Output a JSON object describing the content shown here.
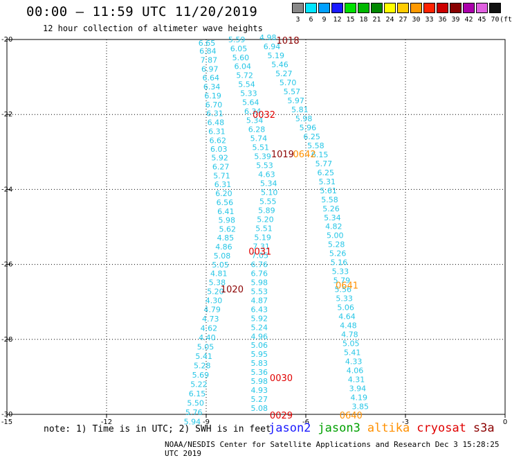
{
  "header": {
    "title": "00:00 – 11:59 UTC 11/20/2019",
    "subtitle": "12 hour collection of altimeter wave heights"
  },
  "color_scale": {
    "unit": "(ft)",
    "bins": [
      {
        "label": "3",
        "color": "#888888"
      },
      {
        "label": "6",
        "color": "#00e5ff"
      },
      {
        "label": "9",
        "color": "#00a0ff"
      },
      {
        "label": "12",
        "color": "#1a1aff"
      },
      {
        "label": "15",
        "color": "#00e000"
      },
      {
        "label": "18",
        "color": "#00b800"
      },
      {
        "label": "21",
        "color": "#008800"
      },
      {
        "label": "24",
        "color": "#ffff00"
      },
      {
        "label": "27",
        "color": "#ffcc00"
      },
      {
        "label": "30",
        "color": "#ff9900"
      },
      {
        "label": "33",
        "color": "#ff2200"
      },
      {
        "label": "36",
        "color": "#cc0000"
      },
      {
        "label": "39",
        "color": "#880000"
      },
      {
        "label": "42",
        "color": "#aa00aa"
      },
      {
        "label": "45",
        "color": "#e060e0"
      },
      {
        "label": "70",
        "color": "#111111"
      }
    ]
  },
  "chart_data": {
    "type": "scatter",
    "x_ticks": [
      "-15",
      "-12",
      "-9",
      "-6",
      "-3",
      "0"
    ],
    "y_ticks": [
      "-20",
      "-22",
      "-24",
      "-26",
      "-28",
      "-30"
    ],
    "xlim": [
      -15,
      0
    ],
    "ylim": [
      -30,
      -20
    ],
    "grid": true,
    "tracks": [
      {
        "color": "#26c6e6",
        "points": [
          [
            -8.98,
            -20.17,
            "6.65"
          ],
          [
            -8.95,
            -20.38,
            "6.84"
          ],
          [
            -8.92,
            -20.62,
            "7.87"
          ],
          [
            -8.89,
            -20.86,
            "6.97"
          ],
          [
            -8.86,
            -21.09,
            "6.64"
          ],
          [
            -8.83,
            -21.33,
            "6.34"
          ],
          [
            -8.8,
            -21.57,
            "6.19"
          ],
          [
            -8.77,
            -21.81,
            "6.70"
          ],
          [
            -8.74,
            -22.04,
            "6.31"
          ],
          [
            -8.71,
            -22.28,
            "6.48"
          ],
          [
            -8.68,
            -22.52,
            "6.31"
          ],
          [
            -8.65,
            -22.76,
            "6.62"
          ],
          [
            -8.62,
            -22.99,
            "6.03"
          ],
          [
            -8.59,
            -23.23,
            "5.92"
          ],
          [
            -8.56,
            -23.47,
            "6.27"
          ],
          [
            -8.53,
            -23.71,
            "5.71"
          ],
          [
            -8.5,
            -23.94,
            "6.31"
          ],
          [
            -8.47,
            -24.18,
            "6.20"
          ],
          [
            -8.44,
            -24.42,
            "6.56"
          ],
          [
            -8.41,
            -24.66,
            "6.41"
          ],
          [
            -8.38,
            -24.89,
            "5.98"
          ],
          [
            -8.36,
            -25.13,
            "5.62"
          ],
          [
            -8.42,
            -25.36,
            "4.85"
          ],
          [
            -8.47,
            -25.6,
            "4.86"
          ],
          [
            -8.52,
            -25.84,
            "5.08"
          ],
          [
            -8.57,
            -26.08,
            "5.05"
          ],
          [
            -8.62,
            -26.31,
            "4.81"
          ],
          [
            -8.67,
            -26.55,
            "5.38"
          ],
          [
            -8.72,
            -26.79,
            "5.20"
          ],
          [
            -8.77,
            -27.03,
            "4.30"
          ],
          [
            -8.82,
            -27.27,
            "4.79"
          ],
          [
            -8.87,
            -27.52,
            "4.73"
          ],
          [
            -8.92,
            -27.77,
            "4.62"
          ],
          [
            -8.97,
            -28.02,
            "4.40"
          ],
          [
            -9.02,
            -28.27,
            "5.05"
          ],
          [
            -9.07,
            -28.52,
            "5.41"
          ],
          [
            -9.12,
            -28.77,
            "5.28"
          ],
          [
            -9.17,
            -29.02,
            "5.69"
          ],
          [
            -9.22,
            -29.27,
            "5.22"
          ],
          [
            -9.27,
            -29.52,
            "6.15"
          ],
          [
            -9.32,
            -29.77,
            "5.50"
          ],
          [
            -9.37,
            -30.02,
            "5.76"
          ],
          [
            -9.42,
            -30.27,
            "5.94"
          ]
        ]
      },
      {
        "color": "#26c6e6",
        "points": [
          [
            -8.08,
            -20.07,
            "5.59"
          ],
          [
            -8.02,
            -20.31,
            "6.05"
          ],
          [
            -7.96,
            -20.55,
            "5.60"
          ],
          [
            -7.9,
            -20.79,
            "6.04"
          ],
          [
            -7.84,
            -21.03,
            "5.72"
          ],
          [
            -7.78,
            -21.27,
            "5.54"
          ],
          [
            -7.72,
            -21.51,
            "5.33"
          ],
          [
            -7.66,
            -21.75,
            "5.64"
          ],
          [
            -7.6,
            -21.99,
            "6.34"
          ],
          [
            -7.54,
            -22.23,
            "5.34"
          ],
          [
            -7.48,
            -22.47,
            "6.28"
          ],
          [
            -7.42,
            -22.71,
            "5.74"
          ],
          [
            -7.36,
            -22.95,
            "5.51"
          ],
          [
            -7.3,
            -23.19,
            "5.39"
          ],
          [
            -7.24,
            -23.43,
            "5.53"
          ],
          [
            -7.18,
            -23.67,
            "4.63"
          ],
          [
            -7.12,
            -23.91,
            "5.34"
          ],
          [
            -7.1,
            -24.15,
            "5.10"
          ],
          [
            -7.14,
            -24.39,
            "5.55"
          ],
          [
            -7.18,
            -24.63,
            "5.89"
          ],
          [
            -7.22,
            -24.87,
            "5.20"
          ],
          [
            -7.26,
            -25.11,
            "5.51"
          ],
          [
            -7.3,
            -25.35,
            "5.19"
          ],
          [
            -7.34,
            -25.59,
            "7.31"
          ],
          [
            -7.38,
            -25.83,
            "7.05"
          ],
          [
            -7.4,
            -26.07,
            "6.76"
          ],
          [
            -7.4,
            -26.31,
            "6.76"
          ],
          [
            -7.4,
            -26.55,
            "5.98"
          ],
          [
            -7.4,
            -26.79,
            "5.53"
          ],
          [
            -7.4,
            -27.03,
            "4.87"
          ],
          [
            -7.4,
            -27.27,
            "6.43"
          ],
          [
            -7.4,
            -27.51,
            "5.92"
          ],
          [
            -7.4,
            -27.75,
            "5.24"
          ],
          [
            -7.4,
            -27.99,
            "4.96"
          ],
          [
            -7.4,
            -28.23,
            "5.06"
          ],
          [
            -7.4,
            -28.47,
            "5.95"
          ],
          [
            -7.4,
            -28.71,
            "5.83"
          ],
          [
            -7.4,
            -28.95,
            "5.36"
          ],
          [
            -7.4,
            -29.19,
            "5.98"
          ],
          [
            -7.4,
            -29.43,
            "4.93"
          ],
          [
            -7.4,
            -29.67,
            "5.27"
          ],
          [
            -7.4,
            -29.91,
            "5.08"
          ]
        ]
      },
      {
        "color": "#26c6e6",
        "points": [
          [
            -7.14,
            -20.02,
            "4.98"
          ],
          [
            -7.02,
            -20.26,
            "6.94"
          ],
          [
            -6.9,
            -20.5,
            "5.19"
          ],
          [
            -6.78,
            -20.74,
            "5.46"
          ],
          [
            -6.66,
            -20.98,
            "5.27"
          ],
          [
            -6.54,
            -21.22,
            "5.70"
          ],
          [
            -6.42,
            -21.46,
            "5.57"
          ],
          [
            -6.3,
            -21.7,
            "5.97"
          ],
          [
            -6.18,
            -21.94,
            "5.81"
          ],
          [
            -6.06,
            -22.18,
            "5.98"
          ],
          [
            -5.94,
            -22.42,
            "5.96"
          ],
          [
            -5.82,
            -22.66,
            "6.25"
          ],
          [
            -5.7,
            -22.9,
            "5.58"
          ],
          [
            -5.58,
            -23.14,
            "6.15"
          ],
          [
            -5.46,
            -23.38,
            "5.77"
          ],
          [
            -5.4,
            -23.62,
            "6.25"
          ],
          [
            -5.36,
            -23.86,
            "5.31"
          ],
          [
            -5.32,
            -24.1,
            "5.61"
          ],
          [
            -5.28,
            -24.34,
            "5.58"
          ],
          [
            -5.24,
            -24.58,
            "5.26"
          ],
          [
            -5.2,
            -24.82,
            "5.34"
          ],
          [
            -5.16,
            -25.06,
            "4.82"
          ],
          [
            -5.12,
            -25.3,
            "5.00"
          ],
          [
            -5.08,
            -25.54,
            "5.28"
          ],
          [
            -5.04,
            -25.78,
            "5.26"
          ],
          [
            -5.0,
            -26.02,
            "5.16"
          ],
          [
            -4.96,
            -26.26,
            "5.33"
          ],
          [
            -4.92,
            -26.5,
            "5.79"
          ],
          [
            -4.88,
            -26.74,
            "5.56"
          ],
          [
            -4.84,
            -26.98,
            "5.33"
          ],
          [
            -4.8,
            -27.22,
            "5.06"
          ],
          [
            -4.76,
            -27.46,
            "4.64"
          ],
          [
            -4.72,
            -27.7,
            "4.48"
          ],
          [
            -4.68,
            -27.94,
            "4.78"
          ],
          [
            -4.64,
            -28.18,
            "5.05"
          ],
          [
            -4.6,
            -28.42,
            "5.41"
          ],
          [
            -4.56,
            -28.66,
            "4.33"
          ],
          [
            -4.52,
            -28.9,
            "4.06"
          ],
          [
            -4.48,
            -29.14,
            "4.31"
          ],
          [
            -4.44,
            -29.38,
            "3.94"
          ],
          [
            -4.4,
            -29.62,
            "4.19"
          ],
          [
            -4.36,
            -29.86,
            "3.85"
          ]
        ]
      }
    ],
    "time_labels": [
      {
        "x": -6.54,
        "y": -20.02,
        "text": "1018",
        "color": "#8b0000"
      },
      {
        "x": -7.26,
        "y": -22.0,
        "text": "0032",
        "color": "#e00000"
      },
      {
        "x": -6.7,
        "y": -23.05,
        "text": "1019",
        "color": "#8b0000"
      },
      {
        "x": -6.04,
        "y": -23.05,
        "text": "0642",
        "color": "#ff9000"
      },
      {
        "x": -7.38,
        "y": -25.65,
        "text": "0031",
        "color": "#e00000"
      },
      {
        "x": -8.22,
        "y": -26.65,
        "text": "1020",
        "color": "#8b0000"
      },
      {
        "x": -4.76,
        "y": -26.55,
        "text": "0641",
        "color": "#ff9000"
      },
      {
        "x": -6.74,
        "y": -29.02,
        "text": "0030",
        "color": "#e00000"
      },
      {
        "x": -6.74,
        "y": -30.02,
        "text": "0029",
        "color": "#e00000"
      },
      {
        "x": -4.64,
        "y": -30.02,
        "text": "0640",
        "color": "#ff9000"
      }
    ]
  },
  "legend": {
    "items": [
      {
        "label": "jason2",
        "color": "#1a1aff"
      },
      {
        "label": "jason3",
        "color": "#00a000"
      },
      {
        "label": "altika",
        "color": "#ff9000"
      },
      {
        "label": "cryosat",
        "color": "#e00000"
      },
      {
        "label": "s3a",
        "color": "#8b0000"
      }
    ]
  },
  "footer": {
    "note": "note: 1) Time is in UTC; 2) SWH is in feet",
    "credit": "NOAA/NESDIS Center for Satellite Applications and Research   Dec  3 15:28:25 UTC 2019"
  }
}
